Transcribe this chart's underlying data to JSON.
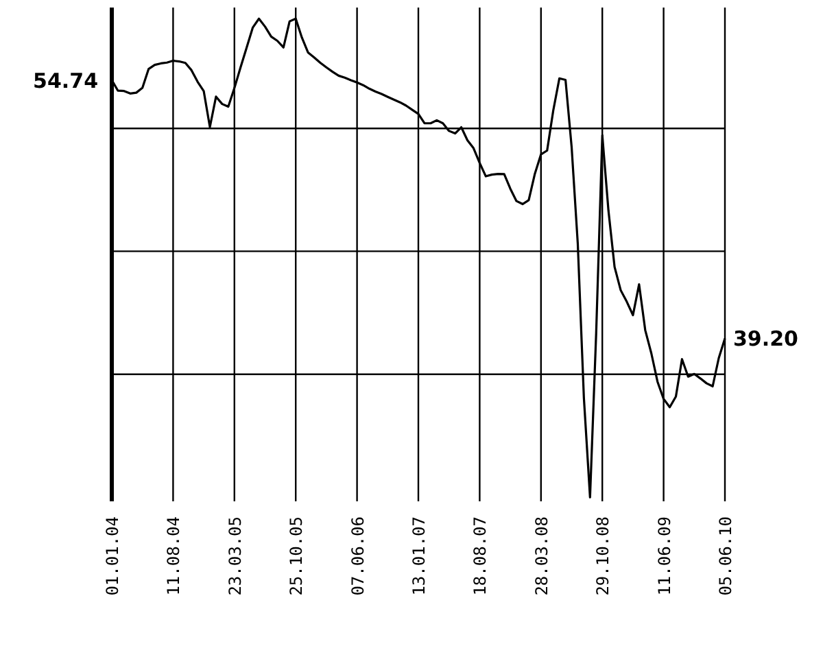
{
  "chart_data": {
    "type": "line",
    "grid": true,
    "ylim": [
      29.4,
      59.1
    ],
    "categories": [
      "01.01.04",
      null,
      null,
      null,
      null,
      null,
      null,
      null,
      null,
      null,
      "11.08.04",
      null,
      null,
      null,
      null,
      null,
      null,
      null,
      null,
      null,
      "23.03.05",
      null,
      null,
      null,
      null,
      null,
      null,
      null,
      null,
      null,
      "25.10.05",
      null,
      null,
      null,
      null,
      null,
      null,
      null,
      null,
      null,
      "07.06.06",
      null,
      null,
      null,
      null,
      null,
      null,
      null,
      null,
      null,
      "13.01.07",
      null,
      null,
      null,
      null,
      null,
      null,
      null,
      null,
      null,
      "18.08.07",
      null,
      null,
      null,
      null,
      null,
      null,
      null,
      null,
      null,
      "28.03.08",
      null,
      null,
      null,
      null,
      null,
      null,
      null,
      null,
      null,
      "29.10.08",
      null,
      null,
      null,
      null,
      null,
      null,
      null,
      null,
      null,
      "11.06.09",
      null,
      null,
      null,
      null,
      null,
      null,
      null,
      null,
      null,
      "05.06.10"
    ],
    "yticks": [
      {
        "value": 51.83,
        "label": null
      },
      {
        "value": 44.44,
        "label": null
      },
      {
        "value": 37.04,
        "label": null
      }
    ],
    "series": [
      {
        "color": "#000000",
        "values": [
          54.74,
          54.1,
          54.08,
          53.93,
          53.98,
          54.27,
          55.4,
          55.65,
          55.74,
          55.79,
          55.9,
          55.86,
          55.77,
          55.33,
          54.63,
          54.07,
          51.91,
          53.74,
          53.3,
          53.14,
          54.26,
          55.5,
          56.7,
          57.9,
          58.43,
          57.95,
          57.35,
          57.1,
          56.7,
          58.27,
          58.43,
          57.3,
          56.4,
          56.1,
          55.78,
          55.5,
          55.24,
          55.0,
          54.88,
          54.73,
          54.59,
          54.43,
          54.22,
          54.05,
          53.9,
          53.73,
          53.56,
          53.4,
          53.2,
          52.95,
          52.7,
          52.14,
          52.14,
          52.32,
          52.14,
          51.68,
          51.53,
          51.9,
          51.12,
          50.64,
          49.75,
          48.95,
          49.05,
          49.09,
          49.08,
          48.2,
          47.46,
          47.28,
          47.51,
          49.1,
          50.27,
          50.5,
          52.9,
          54.84,
          54.75,
          50.7,
          44.9,
          35.6,
          29.64,
          39.5,
          51.42,
          46.9,
          43.5,
          42.1,
          41.4,
          40.6,
          42.45,
          39.7,
          38.3,
          36.6,
          35.56,
          35.06,
          35.7,
          37.95,
          36.9,
          37.06,
          36.79,
          36.5,
          36.32,
          38.02,
          39.2
        ],
        "value_labels": [
          "54.74",
          null,
          null,
          null,
          null,
          null,
          null,
          null,
          null,
          null,
          null,
          null,
          null,
          null,
          null,
          null,
          null,
          null,
          null,
          null,
          null,
          null,
          null,
          null,
          null,
          null,
          null,
          null,
          null,
          null,
          null,
          null,
          null,
          null,
          null,
          null,
          null,
          null,
          null,
          null,
          null,
          null,
          null,
          null,
          null,
          null,
          null,
          null,
          null,
          null,
          null,
          null,
          null,
          null,
          null,
          null,
          null,
          null,
          null,
          null,
          null,
          null,
          null,
          null,
          null,
          null,
          null,
          null,
          null,
          null,
          null,
          null,
          null,
          null,
          null,
          null,
          null,
          null,
          null,
          null,
          null,
          null,
          null,
          null,
          null,
          null,
          null,
          null,
          null,
          null,
          null,
          null,
          null,
          null,
          null,
          null,
          null,
          null,
          null,
          null,
          "39.20"
        ]
      }
    ]
  }
}
